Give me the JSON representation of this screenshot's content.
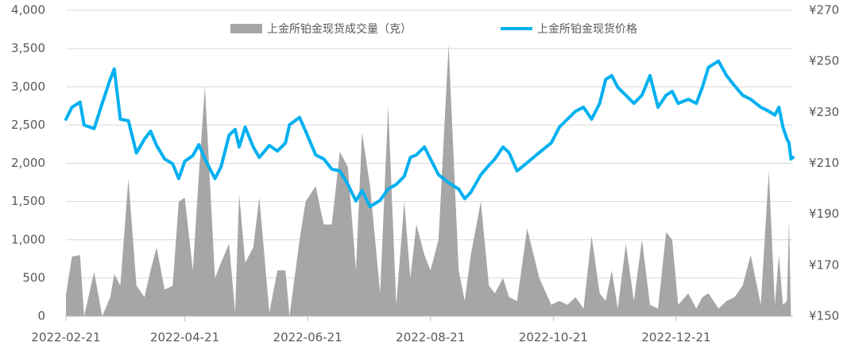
{
  "chart_data": {
    "type": "area-line",
    "x": [
      "2022-02-21",
      "2022-02-24",
      "2022-02-28",
      "2022-03-02",
      "2022-03-07",
      "2022-03-11",
      "2022-03-15",
      "2022-03-17",
      "2022-03-20",
      "2022-03-24",
      "2022-03-28",
      "2022-04-01",
      "2022-04-04",
      "2022-04-07",
      "2022-04-11",
      "2022-04-15",
      "2022-04-18",
      "2022-04-21",
      "2022-04-25",
      "2022-04-28",
      "2022-05-01",
      "2022-05-06",
      "2022-05-09",
      "2022-05-13",
      "2022-05-16",
      "2022-05-18",
      "2022-05-21",
      "2022-05-25",
      "2022-05-28",
      "2022-06-02",
      "2022-06-06",
      "2022-06-10",
      "2022-06-12",
      "2022-06-17",
      "2022-06-20",
      "2022-06-25",
      "2022-06-29",
      "2022-07-03",
      "2022-07-07",
      "2022-07-11",
      "2022-07-15",
      "2022-07-18",
      "2022-07-22",
      "2022-07-27",
      "2022-07-31",
      "2022-08-04",
      "2022-08-08",
      "2022-08-11",
      "2022-08-14",
      "2022-08-18",
      "2022-08-21",
      "2022-08-25",
      "2022-08-30",
      "2022-09-04",
      "2022-09-07",
      "2022-09-10",
      "2022-09-15",
      "2022-09-19",
      "2022-09-22",
      "2022-09-26",
      "2022-09-29",
      "2022-10-03",
      "2022-10-08",
      "2022-10-14",
      "2022-10-20",
      "2022-10-24",
      "2022-10-28",
      "2022-11-01",
      "2022-11-05",
      "2022-11-09",
      "2022-11-13",
      "2022-11-16",
      "2022-11-19",
      "2022-11-22",
      "2022-11-26",
      "2022-11-30",
      "2022-12-04",
      "2022-12-08",
      "2022-12-12",
      "2022-12-16",
      "2022-12-19",
      "2022-12-22",
      "2022-12-27",
      "2022-12-31",
      "2023-01-03",
      "2023-01-06",
      "2023-01-11",
      "2023-01-15",
      "2023-01-19",
      "2023-01-23",
      "2023-01-27",
      "2023-02-01",
      "2023-02-05",
      "2023-02-08",
      "2023-02-10",
      "2023-02-12",
      "2023-02-14",
      "2023-02-15",
      "2023-02-16",
      "2023-02-17"
    ],
    "series": [
      {
        "name": "上金所铂金现货成交量（克）",
        "color": "#a6a6a6",
        "type": "area",
        "values": [
          280,
          780,
          800,
          0,
          580,
          0,
          250,
          550,
          400,
          1800,
          400,
          250,
          600,
          900,
          350,
          400,
          1500,
          1550,
          600,
          1850,
          3000,
          500,
          700,
          950,
          50,
          1600,
          700,
          900,
          1550,
          50,
          600,
          600,
          0,
          1000,
          1500,
          1700,
          1200,
          1200,
          2150,
          1950,
          600,
          2400,
          1700,
          300,
          2750,
          150,
          1500,
          500,
          1200,
          800,
          600,
          1000,
          3550,
          600,
          200,
          800,
          1500,
          400,
          300,
          500,
          250,
          200,
          1150,
          500,
          150,
          200,
          150,
          250,
          100,
          1050,
          300,
          200,
          600,
          100,
          950,
          200,
          1000,
          150,
          100,
          1100,
          1000,
          150,
          300,
          100,
          250,
          300,
          100,
          200,
          250,
          400,
          800,
          150,
          1900,
          150,
          800,
          150,
          200,
          1250,
          0,
          0
        ]
      },
      {
        "name": "上金所铂金现货价格",
        "color": "#00b0f0",
        "type": "line",
        "axis": "y2",
        "values": [
          227.3,
          232,
          234,
          225,
          223.6,
          233.5,
          243,
          247,
          227.3,
          226.7,
          214,
          219.5,
          222.6,
          217,
          211.7,
          209.8,
          204,
          210.8,
          213,
          217.3,
          211.7,
          204,
          208.6,
          221,
          223.3,
          216.4,
          224.2,
          216.4,
          212.3,
          217,
          214.8,
          218,
          225.1,
          228,
          222.6,
          213.3,
          211.7,
          207.7,
          207,
          201.7,
          195.2,
          199.3,
          193,
          195.5,
          199.9,
          201.7,
          204.9,
          212.3,
          213.3,
          216.4,
          211.7,
          205.5,
          202.4,
          199.9,
          196.1,
          198.6,
          205.5,
          209.2,
          211.7,
          216.4,
          214.2,
          207,
          210.2,
          214.2,
          218,
          224.2,
          227.3,
          230.4,
          232,
          227.3,
          233.5,
          242.9,
          244.4,
          239.8,
          236.7,
          233.5,
          236.7,
          244.4,
          232,
          236.7,
          238.2,
          233.5,
          235.1,
          233.5,
          239.8,
          247.6,
          250.1,
          244.4,
          240.4,
          236.7,
          235.1,
          232,
          230.4,
          228.9,
          232,
          224.2,
          219.5,
          218,
          211.7,
          212.3
        ]
      }
    ],
    "xlim": [
      "2022-02-21",
      "2023-02-17"
    ],
    "xticks": [
      "2022-02-21",
      "2022-04-21",
      "2022-06-21",
      "2022-08-21",
      "2022-10-21",
      "2022-12-21"
    ],
    "ylim": [
      0,
      4000
    ],
    "yticks": [
      0,
      500,
      {
        "value": 1000,
        "label": "1,000"
      },
      {
        "value": 1500,
        "label": "1,500"
      },
      {
        "value": 2000,
        "label": "2,000"
      },
      {
        "value": 2500,
        "label": "2,500"
      },
      {
        "value": 3000,
        "label": "3,000"
      },
      {
        "value": 3500,
        "label": "3,500"
      },
      {
        "value": 4000,
        "label": "4,000"
      }
    ],
    "y2lim": [
      150,
      270
    ],
    "y2ticks": [
      {
        "value": 150,
        "label": "¥150"
      },
      {
        "value": 170,
        "label": "¥170"
      },
      {
        "value": 190,
        "label": "¥190"
      },
      {
        "value": 210,
        "label": "¥210"
      },
      {
        "value": 230,
        "label": "¥230"
      },
      {
        "value": 250,
        "label": "¥250"
      },
      {
        "value": 270,
        "label": "¥270"
      }
    ],
    "grid": true,
    "legend": "top"
  }
}
